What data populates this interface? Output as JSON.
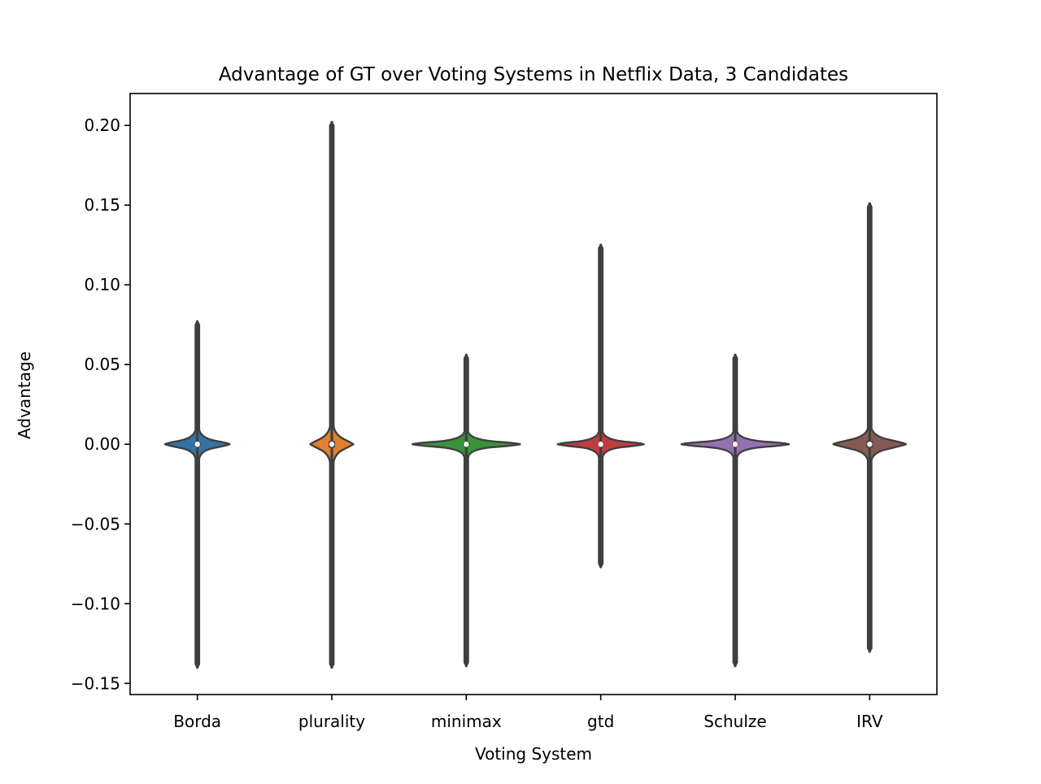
{
  "chart_data": {
    "type": "violin",
    "title": "Advantage of GT over Voting Systems in Netflix Data, 3 Candidates",
    "xlabel": "Voting System",
    "ylabel": "Advantage",
    "ylim": [
      -0.157,
      0.22
    ],
    "yticks": [
      -0.15,
      -0.1,
      -0.05,
      0.0,
      0.05,
      0.1,
      0.15,
      0.2
    ],
    "ytick_labels": [
      "−0.15",
      "−0.10",
      "−0.05",
      "0.00",
      "0.05",
      "0.10",
      "0.15",
      "0.20"
    ],
    "grid": false,
    "categories": [
      "Borda",
      "plurality",
      "minimax",
      "gtd",
      "Schulze",
      "IRV"
    ],
    "series": [
      {
        "category": "Borda",
        "color": "#3274a1",
        "min": -0.14,
        "max": 0.077,
        "median": 0.0,
        "q1": -0.001,
        "q3": 0.001,
        "density_half_width": 0.24,
        "density_y_low": -0.004,
        "density_y_high": 0.004
      },
      {
        "category": "plurality",
        "color": "#e1812c",
        "min": -0.14,
        "max": 0.202,
        "median": 0.0,
        "q1": -0.002,
        "q3": 0.002,
        "density_half_width": 0.16,
        "density_y_low": -0.006,
        "density_y_high": 0.006
      },
      {
        "category": "minimax",
        "color": "#3a923a",
        "min": -0.139,
        "max": 0.056,
        "median": 0.0,
        "q1": -0.001,
        "q3": 0.001,
        "density_half_width": 0.4,
        "density_y_low": -0.003,
        "density_y_high": 0.003
      },
      {
        "category": "gtd",
        "color": "#c03d3e",
        "min": -0.077,
        "max": 0.125,
        "median": 0.0,
        "q1": -0.001,
        "q3": 0.001,
        "density_half_width": 0.32,
        "density_y_low": -0.003,
        "density_y_high": 0.003
      },
      {
        "category": "Schulze",
        "color": "#9372b2",
        "min": -0.139,
        "max": 0.056,
        "median": 0.0,
        "q1": -0.001,
        "q3": 0.001,
        "density_half_width": 0.4,
        "density_y_low": -0.003,
        "density_y_high": 0.003
      },
      {
        "category": "IRV",
        "color": "#845b53",
        "min": -0.13,
        "max": 0.151,
        "median": 0.0,
        "q1": -0.002,
        "q3": 0.002,
        "density_half_width": 0.27,
        "density_y_low": -0.005,
        "density_y_high": 0.005
      }
    ]
  }
}
